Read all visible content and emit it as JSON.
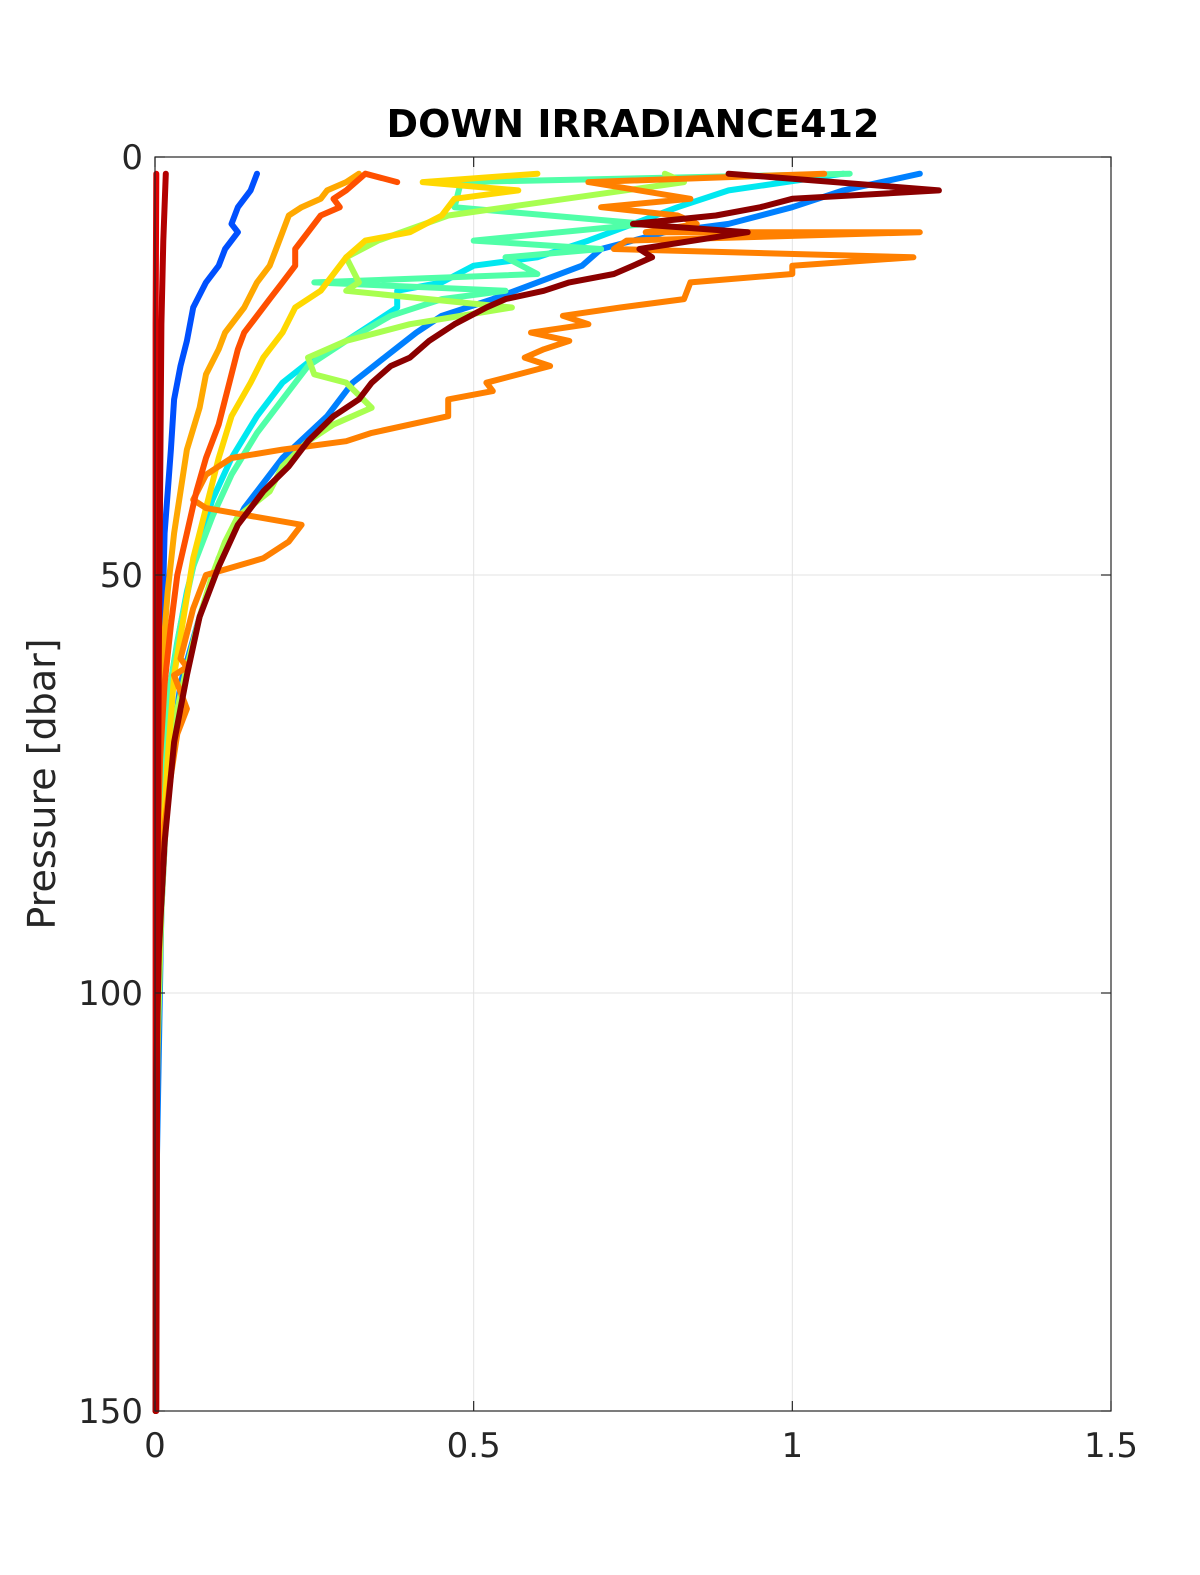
{
  "chart_data": {
    "type": "line",
    "title": "DOWN IRRADIANCE412",
    "ylabel": "Pressure [dbar]",
    "xlabel": "",
    "xlim": [
      0,
      1.5
    ],
    "ylim": [
      0,
      150
    ],
    "y_reversed": true,
    "grid": true,
    "x_ticks": [
      0,
      0.5,
      1,
      1.5
    ],
    "x_tick_labels": [
      "0",
      "0.5",
      "1",
      "1.5"
    ],
    "y_ticks": [
      0,
      50,
      100,
      150
    ],
    "y_tick_labels": [
      "0",
      "50",
      "100",
      "150"
    ],
    "series": [
      {
        "color": "#0050ff",
        "points": [
          [
            0.16,
            2
          ],
          [
            0.15,
            4
          ],
          [
            0.13,
            6
          ],
          [
            0.12,
            8
          ],
          [
            0.13,
            9
          ],
          [
            0.11,
            11
          ],
          [
            0.1,
            13
          ],
          [
            0.08,
            15
          ],
          [
            0.06,
            18
          ],
          [
            0.05,
            22
          ],
          [
            0.04,
            25
          ],
          [
            0.03,
            29
          ],
          [
            0.025,
            35
          ],
          [
            0.015,
            45
          ],
          [
            0.01,
            60
          ],
          [
            0.005,
            80
          ],
          [
            0.002,
            100
          ],
          [
            0.001,
            150
          ]
        ]
      },
      {
        "color": "#0080ff",
        "points": [
          [
            1.2,
            2
          ],
          [
            1.08,
            4
          ],
          [
            1.0,
            6
          ],
          [
            0.9,
            8
          ],
          [
            0.8,
            9
          ],
          [
            0.7,
            11
          ],
          [
            0.67,
            13
          ],
          [
            0.6,
            15
          ],
          [
            0.53,
            17
          ],
          [
            0.45,
            19
          ],
          [
            0.41,
            21
          ],
          [
            0.36,
            24
          ],
          [
            0.31,
            27
          ],
          [
            0.27,
            31
          ],
          [
            0.2,
            36
          ],
          [
            0.14,
            42
          ],
          [
            0.1,
            48
          ],
          [
            0.07,
            55
          ],
          [
            0.04,
            63
          ],
          [
            0.02,
            75
          ],
          [
            0.01,
            90
          ],
          [
            0.003,
            120
          ],
          [
            0.001,
            150
          ]
        ]
      },
      {
        "color": "#00e8f0",
        "points": [
          [
            1.08,
            2
          ],
          [
            0.9,
            4
          ],
          [
            0.82,
            6
          ],
          [
            0.75,
            8
          ],
          [
            0.68,
            10
          ],
          [
            0.6,
            12
          ],
          [
            0.5,
            13
          ],
          [
            0.45,
            15
          ],
          [
            0.38,
            16
          ],
          [
            0.38,
            18
          ],
          [
            0.34,
            20
          ],
          [
            0.3,
            22
          ],
          [
            0.25,
            24
          ],
          [
            0.2,
            27
          ],
          [
            0.16,
            31
          ],
          [
            0.12,
            36
          ],
          [
            0.09,
            41
          ],
          [
            0.07,
            46
          ],
          [
            0.05,
            52
          ],
          [
            0.035,
            58
          ],
          [
            0.02,
            65
          ],
          [
            0.01,
            78
          ],
          [
            0.004,
            95
          ],
          [
            0.001,
            150
          ]
        ]
      },
      {
        "color": "#50ffa8",
        "points": [
          [
            1.09,
            2
          ],
          [
            0.48,
            3
          ],
          [
            0.47,
            6
          ],
          [
            0.77,
            8
          ],
          [
            0.5,
            10
          ],
          [
            0.7,
            11
          ],
          [
            0.55,
            12
          ],
          [
            0.6,
            14
          ],
          [
            0.25,
            15
          ],
          [
            0.55,
            16
          ],
          [
            0.45,
            17
          ],
          [
            0.37,
            19
          ],
          [
            0.3,
            22
          ],
          [
            0.24,
            25
          ],
          [
            0.2,
            29
          ],
          [
            0.16,
            33
          ],
          [
            0.12,
            38
          ],
          [
            0.09,
            43
          ],
          [
            0.06,
            49
          ],
          [
            0.04,
            56
          ],
          [
            0.02,
            65
          ],
          [
            0.01,
            80
          ],
          [
            0.003,
            100
          ],
          [
            0.001,
            150
          ]
        ]
      },
      {
        "color": "#a8ff50",
        "points": [
          [
            0.8,
            2
          ],
          [
            0.83,
            3
          ],
          [
            0.46,
            7
          ],
          [
            0.35,
            10
          ],
          [
            0.3,
            12
          ],
          [
            0.32,
            15
          ],
          [
            0.3,
            16
          ],
          [
            0.56,
            18
          ],
          [
            0.4,
            20
          ],
          [
            0.3,
            22
          ],
          [
            0.24,
            24
          ],
          [
            0.25,
            26
          ],
          [
            0.3,
            27
          ],
          [
            0.34,
            30
          ],
          [
            0.28,
            32
          ],
          [
            0.24,
            34
          ],
          [
            0.2,
            37
          ],
          [
            0.18,
            40
          ],
          [
            0.13,
            43
          ],
          [
            0.11,
            46
          ],
          [
            0.09,
            50
          ],
          [
            0.07,
            55
          ],
          [
            0.05,
            61
          ],
          [
            0.035,
            66
          ],
          [
            0.02,
            75
          ],
          [
            0.01,
            90
          ],
          [
            0.003,
            110
          ],
          [
            0.001,
            150
          ]
        ]
      },
      {
        "color": "#ffd800",
        "points": [
          [
            0.6,
            2
          ],
          [
            0.42,
            3
          ],
          [
            0.57,
            4
          ],
          [
            0.47,
            5
          ],
          [
            0.45,
            7
          ],
          [
            0.4,
            9
          ],
          [
            0.33,
            10
          ],
          [
            0.3,
            12
          ],
          [
            0.28,
            14
          ],
          [
            0.26,
            16
          ],
          [
            0.22,
            18
          ],
          [
            0.2,
            21
          ],
          [
            0.17,
            24
          ],
          [
            0.15,
            27
          ],
          [
            0.12,
            31
          ],
          [
            0.1,
            36
          ],
          [
            0.08,
            42
          ],
          [
            0.06,
            48
          ],
          [
            0.045,
            55
          ],
          [
            0.03,
            62
          ],
          [
            0.02,
            72
          ],
          [
            0.01,
            85
          ],
          [
            0.004,
            100
          ],
          [
            0.001,
            150
          ]
        ]
      },
      {
        "color": "#ffa800",
        "points": [
          [
            0.32,
            2
          ],
          [
            0.3,
            3
          ],
          [
            0.27,
            4
          ],
          [
            0.26,
            5
          ],
          [
            0.23,
            6
          ],
          [
            0.21,
            7
          ],
          [
            0.2,
            9
          ],
          [
            0.19,
            11
          ],
          [
            0.18,
            13
          ],
          [
            0.16,
            15
          ],
          [
            0.14,
            18
          ],
          [
            0.11,
            21
          ],
          [
            0.1,
            23
          ],
          [
            0.08,
            26
          ],
          [
            0.07,
            30
          ],
          [
            0.05,
            35
          ],
          [
            0.04,
            40
          ],
          [
            0.03,
            45
          ],
          [
            0.02,
            52
          ],
          [
            0.012,
            60
          ],
          [
            0.007,
            70
          ],
          [
            0.003,
            85
          ],
          [
            0.001,
            150
          ]
        ]
      },
      {
        "color": "#ff8000",
        "points": [
          [
            1.05,
            2
          ],
          [
            0.68,
            3
          ],
          [
            0.84,
            5
          ],
          [
            0.7,
            6
          ],
          [
            0.82,
            7
          ],
          [
            0.85,
            8
          ],
          [
            0.77,
            9
          ],
          [
            1.2,
            9
          ],
          [
            0.74,
            10
          ],
          [
            0.72,
            11
          ],
          [
            1.19,
            12
          ],
          [
            1.0,
            13
          ],
          [
            1.0,
            14
          ],
          [
            0.84,
            15
          ],
          [
            0.83,
            17
          ],
          [
            0.73,
            18
          ],
          [
            0.64,
            19
          ],
          [
            0.68,
            20
          ],
          [
            0.59,
            21
          ],
          [
            0.65,
            22
          ],
          [
            0.61,
            23
          ],
          [
            0.58,
            24
          ],
          [
            0.62,
            25
          ],
          [
            0.57,
            26
          ],
          [
            0.52,
            27
          ],
          [
            0.53,
            28
          ],
          [
            0.46,
            29
          ],
          [
            0.46,
            31
          ],
          [
            0.34,
            33
          ],
          [
            0.3,
            34
          ],
          [
            0.2,
            35
          ],
          [
            0.12,
            36
          ],
          [
            0.08,
            38
          ],
          [
            0.06,
            41
          ],
          [
            0.08,
            42
          ],
          [
            0.23,
            44
          ],
          [
            0.21,
            46
          ],
          [
            0.17,
            48
          ],
          [
            0.08,
            50
          ],
          [
            0.07,
            52
          ],
          [
            0.06,
            54
          ],
          [
            0.05,
            57
          ],
          [
            0.04,
            60
          ],
          [
            0.05,
            61
          ],
          [
            0.03,
            62
          ],
          [
            0.04,
            64
          ],
          [
            0.05,
            66
          ],
          [
            0.035,
            69
          ],
          [
            0.025,
            74
          ],
          [
            0.015,
            80
          ],
          [
            0.01,
            88
          ],
          [
            0.004,
            100
          ],
          [
            0.002,
            120
          ],
          [
            0.001,
            150
          ]
        ]
      },
      {
        "color": "#ff5000",
        "points": [
          [
            0.38,
            3
          ],
          [
            0.33,
            2
          ],
          [
            0.3,
            4
          ],
          [
            0.28,
            5
          ],
          [
            0.29,
            6
          ],
          [
            0.26,
            7
          ],
          [
            0.24,
            9
          ],
          [
            0.22,
            11
          ],
          [
            0.22,
            13
          ],
          [
            0.2,
            15
          ],
          [
            0.18,
            17
          ],
          [
            0.16,
            19
          ],
          [
            0.14,
            21
          ],
          [
            0.13,
            23
          ],
          [
            0.12,
            26
          ],
          [
            0.11,
            29
          ],
          [
            0.1,
            32
          ],
          [
            0.08,
            36
          ],
          [
            0.065,
            40
          ],
          [
            0.05,
            45
          ],
          [
            0.035,
            50
          ],
          [
            0.025,
            56
          ],
          [
            0.015,
            63
          ],
          [
            0.008,
            72
          ],
          [
            0.003,
            85
          ],
          [
            0.001,
            150
          ]
        ]
      },
      {
        "color": "#e00000",
        "points": [
          [
            0.002,
            2
          ],
          [
            0.001,
            20
          ],
          [
            0.001,
            150
          ]
        ]
      },
      {
        "color": "#8b0000",
        "points": [
          [
            0.9,
            2
          ],
          [
            1.23,
            4
          ],
          [
            1.0,
            5
          ],
          [
            0.95,
            6
          ],
          [
            0.88,
            7
          ],
          [
            0.75,
            8
          ],
          [
            0.93,
            9
          ],
          [
            0.76,
            11
          ],
          [
            0.78,
            12
          ],
          [
            0.75,
            13
          ],
          [
            0.72,
            14
          ],
          [
            0.65,
            15
          ],
          [
            0.61,
            16
          ],
          [
            0.55,
            17
          ],
          [
            0.52,
            18
          ],
          [
            0.47,
            20
          ],
          [
            0.43,
            22
          ],
          [
            0.4,
            24
          ],
          [
            0.37,
            25
          ],
          [
            0.34,
            27
          ],
          [
            0.32,
            29
          ],
          [
            0.28,
            31
          ],
          [
            0.24,
            34
          ],
          [
            0.21,
            37
          ],
          [
            0.17,
            40
          ],
          [
            0.13,
            44
          ],
          [
            0.1,
            49
          ],
          [
            0.07,
            55
          ],
          [
            0.05,
            62
          ],
          [
            0.03,
            70
          ],
          [
            0.015,
            82
          ],
          [
            0.006,
            95
          ],
          [
            0.002,
            110
          ],
          [
            0.001,
            150
          ]
        ]
      },
      {
        "color": "#b30000",
        "points": [
          [
            0.017,
            2
          ],
          [
            0.013,
            10
          ],
          [
            0.01,
            20
          ],
          [
            0.008,
            40
          ],
          [
            0.006,
            60
          ],
          [
            0.004,
            90
          ],
          [
            0.003,
            120
          ],
          [
            0.002,
            150
          ]
        ]
      }
    ]
  }
}
